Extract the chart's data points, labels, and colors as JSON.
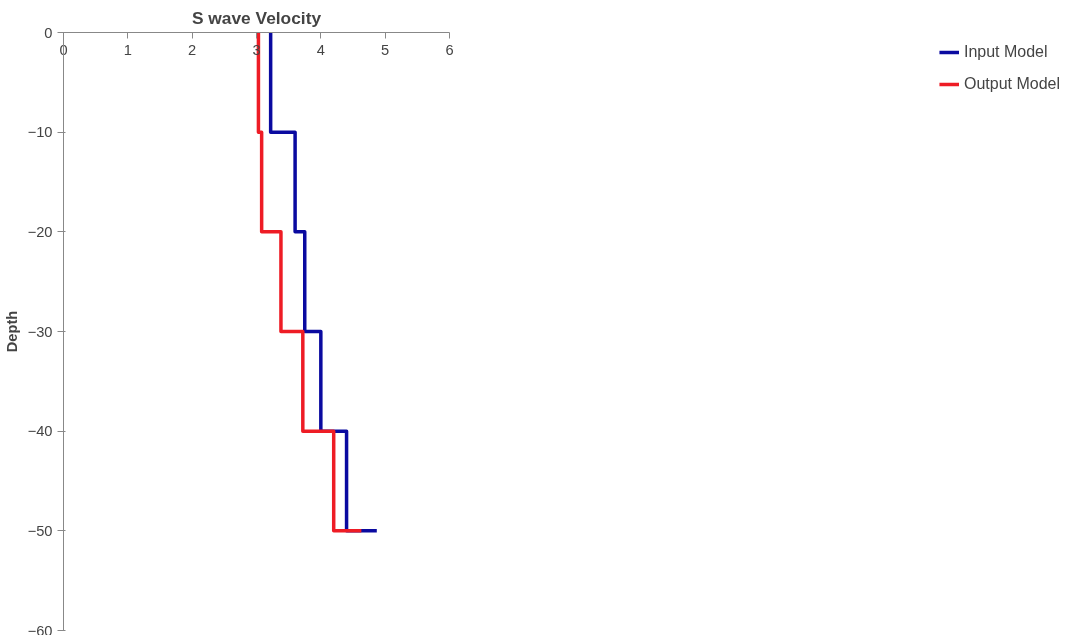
{
  "chart_data": {
    "type": "line",
    "title": "S wave Velocity",
    "ylabel": "Depth",
    "xlim": [
      0,
      6
    ],
    "ylim": [
      -60,
      0
    ],
    "xticks": [
      0,
      1,
      2,
      3,
      4,
      5,
      6
    ],
    "yticks": [
      -60,
      -50,
      -40,
      -30,
      -20,
      -10,
      0
    ],
    "grid": false,
    "legend": "right",
    "marker": "none",
    "line_style": "solid",
    "series": [
      {
        "name": "Input Model",
        "color": "#0a0aa0",
        "x": [
          3.22,
          3.22,
          3.6,
          3.6,
          3.75,
          3.75,
          4.0,
          4.0,
          4.4,
          4.4,
          4.87
        ],
        "values": [
          0,
          -10,
          -10,
          -20,
          -20,
          -30,
          -30,
          -40,
          -40,
          -50,
          -50
        ]
      },
      {
        "name": "Output Model",
        "color": "#ee1c25",
        "x": [
          3.03,
          3.03,
          3.08,
          3.08,
          3.38,
          3.38,
          3.72,
          3.72,
          4.2,
          4.2,
          4.63
        ],
        "values": [
          0,
          -10,
          -10,
          -20,
          -20,
          -30,
          -30,
          -40,
          -40,
          -50,
          -50
        ]
      }
    ]
  }
}
